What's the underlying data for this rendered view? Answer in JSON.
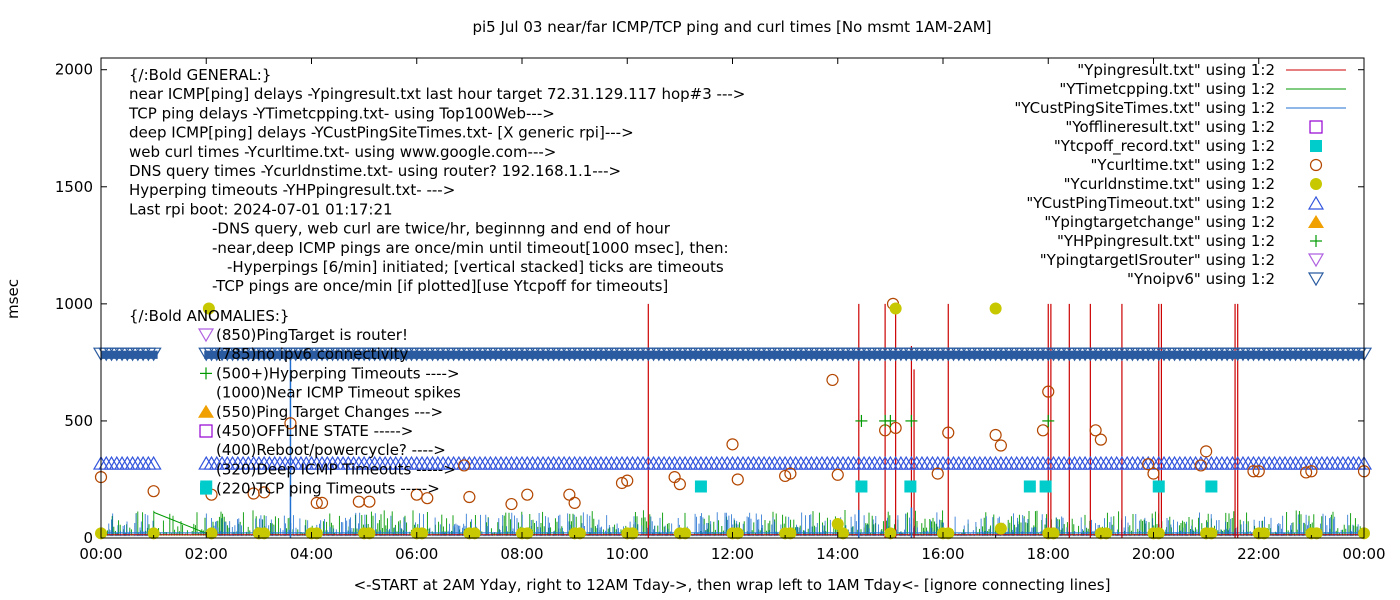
{
  "chart_data": {
    "type": "line",
    "title": "pi5 Jul 03  near/far ICMP/TCP ping and curl times [No msmt 1AM-2AM]",
    "xlabel": "<-START at 2AM Yday, right to 12AM Tday->, then wrap left to 1AM Tday<- [ignore connecting lines]",
    "ylabel": "msec",
    "xlim": [
      0,
      24
    ],
    "ylim": [
      0,
      2050
    ],
    "x_ticks": [
      "00:00",
      "02:00",
      "04:00",
      "06:00",
      "08:00",
      "10:00",
      "12:00",
      "14:00",
      "16:00",
      "18:00",
      "20:00",
      "22:00",
      "00:00"
    ],
    "y_ticks": [
      "0",
      "500",
      "1000",
      "1500",
      "2000"
    ],
    "y_tick_values": [
      0,
      500,
      1000,
      1500,
      2000
    ],
    "grid": false,
    "legend_position": "top-right",
    "legend": [
      {
        "label": "\"Ypingresult.txt\" using 1:2",
        "marker": "line",
        "color": "#cc0000"
      },
      {
        "label": "\"YTimetcpping.txt\" using 1:2",
        "marker": "line",
        "color": "#009900"
      },
      {
        "label": "\"YCustPingSiteTimes.txt\" using 1:2",
        "marker": "line",
        "color": "#1f6fd0"
      },
      {
        "label": "\"Yofflineresult.txt\" using 1:2",
        "marker": "open-square",
        "color": "#9400d3"
      },
      {
        "label": "\"Ytcpoff_record.txt\" using 1:2",
        "marker": "filled-square",
        "color": "#00cccc"
      },
      {
        "label": "\"Ycurltime.txt\" using 1:2",
        "marker": "open-circle",
        "color": "#b34700"
      },
      {
        "label": "\"Ycurldnstime.txt\" using 1:2",
        "marker": "filled-circle",
        "color": "#c8c800"
      },
      {
        "label": "\"YCustPingTimeout.txt\" using 1:2",
        "marker": "open-triangle",
        "color": "#3355dd"
      },
      {
        "label": "\"Ypingtargetchange\" using 1:2",
        "marker": "filled-triangle",
        "color": "#f0a000"
      },
      {
        "label": "\"YHPpingresult.txt\" using 1:2",
        "marker": "plus",
        "color": "#009900"
      },
      {
        "label": "\"YpingtargetISrouter\" using 1:2",
        "marker": "open-down-triangle",
        "color": "#b060e0"
      },
      {
        "label": "\"Ynoipv6\" using 1:2",
        "marker": "open-down-triangle",
        "color": "#2a5ba0"
      }
    ],
    "annotations": [
      "{/:Bold GENERAL:}",
      "near ICMP[ping] delays -Ypingresult.txt last hour target 72.31.129.117 hop#3 --->",
      "TCP ping delays -YTimetcpping.txt- using Top100Web--->",
      "deep ICMP[ping] delays -YCustPingSiteTimes.txt- [X generic rpi]--->",
      "web curl times -Ycurltime.txt- using www.google.com--->",
      "DNS query times -Ycurldnstime.txt- using router? 192.168.1.1--->",
      "Hyperping timeouts -YHPpingresult.txt- --->",
      "Last rpi boot: 2024-07-01 01:17:21",
      "-DNS query, web curl are twice/hr, beginnng and end of hour",
      "-near,deep ICMP pings are once/min until timeout[1000 msec], then:",
      "-Hyperpings [6/min] initiated; [vertical stacked] ticks are timeouts",
      "-TCP pings are once/min [if plotted][use Ytcpoff for timeouts]",
      "{/:Bold ANOMALIES:}",
      "(850)PingTarget is router!",
      "(785)no ipv6 connectivity",
      "(500+)Hyperping Timeouts ---->",
      "(1000)Near ICMP Timeout spikes",
      "(550)Ping Target Changes --->",
      "(450)OFFLINE STATE ----->",
      "(400)Reboot/powercycle? ---->",
      "(320)Deep ICMP Timeouts ----->",
      "(220)TCP ping Timeouts ----->"
    ],
    "series": [
      {
        "name": "\"Ypingresult.txt\" using 1:2",
        "style": "impulses",
        "x": [
          10.4,
          14.4,
          14.9,
          15.1,
          15.4,
          15.45,
          16.1,
          18,
          18.05,
          18.4,
          18.8,
          19.4,
          20.1,
          20.15,
          21.55,
          21.6
        ],
        "y": [
          1000,
          1000,
          1000,
          1000,
          820,
          720,
          1000,
          1000,
          1000,
          1000,
          1000,
          1000,
          1000,
          1000,
          1000,
          1000
        ]
      },
      {
        "name": "\"YCustPingSiteTimes.txt\" using 1:2",
        "style": "impulses",
        "x": [
          3.6,
          14.4,
          15.4
        ],
        "y": [
          790,
          120,
          130
        ]
      },
      {
        "name": "\"Ycurltime.txt\" using 1:2",
        "style": "points",
        "x": [
          0,
          1,
          2.1,
          2.9,
          3.1,
          3.6,
          4.1,
          4.2,
          4.9,
          5.1,
          6,
          6.2,
          6.9,
          7,
          7.8,
          8.1,
          8.9,
          9,
          9.9,
          10,
          10.9,
          11,
          12,
          12.1,
          13,
          13.1,
          13.9,
          14,
          14.9,
          15.05,
          15.1,
          15.9,
          16.1,
          17,
          17.1,
          17.9,
          18,
          18.9,
          19,
          19.9,
          20,
          20.9,
          21,
          21.9,
          22,
          22.9,
          23,
          24
        ],
        "y": [
          260,
          200,
          185,
          190,
          195,
          490,
          150,
          150,
          155,
          155,
          185,
          170,
          310,
          175,
          145,
          185,
          185,
          150,
          235,
          245,
          260,
          230,
          400,
          250,
          265,
          275,
          675,
          270,
          460,
          1000,
          470,
          275,
          450,
          440,
          395,
          460,
          625,
          460,
          420,
          315,
          275,
          310,
          370,
          285,
          285,
          280,
          285,
          285
        ]
      },
      {
        "name": "\"Ycurldnstime.txt\" using 1:2",
        "style": "points",
        "x": [
          0,
          1,
          2.05,
          2.1,
          3,
          3.1,
          4,
          4.1,
          5,
          5.1,
          6,
          6.1,
          7,
          7.1,
          8,
          8.1,
          9,
          9.1,
          10,
          10.1,
          11,
          11.1,
          12,
          12.1,
          13,
          13.1,
          14,
          14.1,
          15,
          15.1,
          16,
          16.1,
          17,
          17.1,
          18,
          18.1,
          19,
          19.1,
          20,
          20.1,
          21,
          21.1,
          22,
          22.1,
          23,
          23.1,
          24
        ],
        "y": [
          20,
          20,
          980,
          20,
          20,
          20,
          20,
          20,
          20,
          20,
          20,
          20,
          20,
          20,
          20,
          20,
          20,
          20,
          20,
          20,
          20,
          20,
          20,
          20,
          20,
          20,
          60,
          20,
          20,
          980,
          20,
          20,
          980,
          40,
          20,
          20,
          20,
          20,
          20,
          20,
          20,
          20,
          20,
          20,
          20,
          20,
          20
        ]
      },
      {
        "name": "\"Ytcpoff_record.txt\" using 1:2",
        "style": "points",
        "x": [
          2.0,
          11.4,
          14.45,
          15.38,
          17.65,
          17.95,
          20.1,
          21.1
        ],
        "y": [
          220,
          220,
          220,
          220,
          220,
          220,
          220,
          220
        ]
      },
      {
        "name": "\"YHPpingresult.txt\" using 1:2",
        "style": "points",
        "x": [
          14.45,
          14.9,
          15.0,
          15.4,
          18.0
        ],
        "y": [
          500,
          500,
          500,
          500,
          500
        ]
      },
      {
        "name": "\"YCustPingTimeout.txt\" using 1:2",
        "style": "points",
        "x_range": [
          0,
          24
        ],
        "y": 320,
        "gap": [
          1.0,
          2.0
        ]
      },
      {
        "name": "\"Ynoipv6\" using 1:2",
        "style": "points",
        "x_range": [
          0,
          24
        ],
        "y": 785,
        "gap": [
          1.0,
          2.0
        ]
      },
      {
        "name": "\"YTimetcpping.txt\" using 1:2",
        "style": "noise",
        "x_range": [
          0,
          24
        ],
        "y_range": [
          0,
          120
        ]
      }
    ]
  }
}
